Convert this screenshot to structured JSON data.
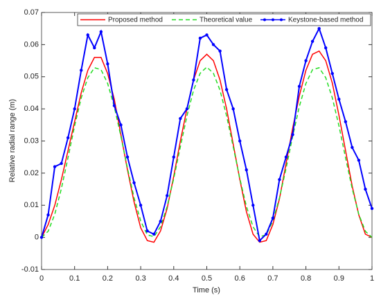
{
  "chart_data": {
    "type": "line",
    "xlabel": "Time (s)",
    "ylabel": "Relative radial range (m)",
    "x": [
      0,
      0.02,
      0.04,
      0.06,
      0.08,
      0.1,
      0.12,
      0.14,
      0.16,
      0.18,
      0.2,
      0.22,
      0.24,
      0.26,
      0.28,
      0.3,
      0.32,
      0.34,
      0.36,
      0.38,
      0.4,
      0.42,
      0.44,
      0.46,
      0.48,
      0.5,
      0.52,
      0.54,
      0.56,
      0.58,
      0.6,
      0.62,
      0.64,
      0.66,
      0.68,
      0.7,
      0.72,
      0.74,
      0.76,
      0.78,
      0.8,
      0.82,
      0.84,
      0.86,
      0.88,
      0.9,
      0.92,
      0.94,
      0.96,
      0.98,
      1
    ],
    "series": [
      {
        "name": "Proposed method",
        "color": "#ff0000",
        "linestyle": "solid",
        "values": [
          0,
          0.004,
          0.01,
          0.018,
          0.027,
          0.036,
          0.045,
          0.052,
          0.056,
          0.056,
          0.051,
          0.043,
          0.032,
          0.021,
          0.011,
          0.003,
          -0.001,
          -0.0015,
          0.002,
          0.009,
          0.019,
          0.03,
          0.04,
          0.049,
          0.055,
          0.057,
          0.055,
          0.049,
          0.04,
          0.029,
          0.018,
          0.008,
          0.001,
          -0.0015,
          -0.001,
          0.004,
          0.012,
          0.023,
          0.034,
          0.044,
          0.052,
          0.057,
          0.058,
          0.055,
          0.048,
          0.038,
          0.027,
          0.016,
          0.007,
          0.001,
          0
        ]
      },
      {
        "name": "Theoretical value",
        "color": "#22dd22",
        "linestyle": "dashed",
        "values": [
          0,
          0.0019,
          0.0072,
          0.0152,
          0.0248,
          0.0347,
          0.0434,
          0.0497,
          0.0528,
          0.0522,
          0.0479,
          0.0407,
          0.0315,
          0.0215,
          0.0123,
          0.0051,
          0.0008,
          0.0002,
          0.0033,
          0.0096,
          0.0183,
          0.0282,
          0.0378,
          0.0458,
          0.0511,
          0.053,
          0.0511,
          0.0458,
          0.0378,
          0.0282,
          0.0183,
          0.0096,
          0.0033,
          0.0002,
          0.0008,
          0.0051,
          0.0123,
          0.0215,
          0.0315,
          0.0407,
          0.0479,
          0.0522,
          0.0528,
          0.0497,
          0.0434,
          0.0347,
          0.0248,
          0.0152,
          0.0072,
          0.0019,
          0
        ]
      },
      {
        "name": "Keystone-based method",
        "color": "#0000ff",
        "linestyle": "solid",
        "marker": "dot",
        "values": [
          0,
          0.007,
          0.022,
          0.023,
          0.031,
          0.04,
          0.052,
          0.063,
          0.059,
          0.064,
          0.054,
          0.041,
          0.035,
          0.025,
          0.017,
          0.01,
          0.002,
          0.001,
          0.005,
          0.013,
          0.025,
          0.037,
          0.04,
          0.049,
          0.062,
          0.063,
          0.06,
          0.058,
          0.046,
          0.04,
          0.03,
          0.021,
          0.01,
          -0.001,
          0.001,
          0.006,
          0.018,
          0.025,
          0.032,
          0.047,
          0.055,
          0.061,
          0.065,
          0.059,
          0.051,
          0.043,
          0.036,
          0.028,
          0.024,
          0.015,
          0.009
        ]
      }
    ],
    "xlim": [
      0,
      1
    ],
    "xticks": [
      0,
      0.1,
      0.2,
      0.3,
      0.4,
      0.5,
      0.6,
      0.7,
      0.8,
      0.9,
      1
    ],
    "ylim": [
      -0.01,
      0.07
    ],
    "yticks": [
      -0.01,
      0,
      0.01,
      0.02,
      0.03,
      0.04,
      0.05,
      0.06,
      0.07
    ],
    "grid": false,
    "legend": "northeast"
  }
}
